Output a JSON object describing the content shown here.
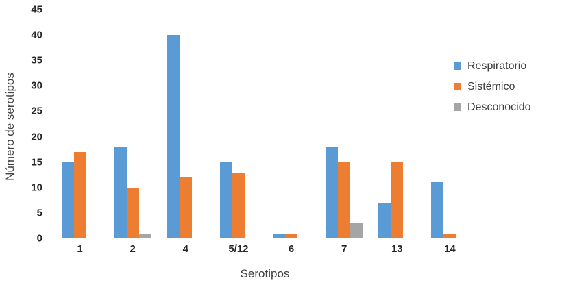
{
  "chart_data": {
    "type": "bar",
    "title": "",
    "xlabel": "Serotipos",
    "ylabel": "Número de serotipos",
    "categories": [
      "1",
      "2",
      "4",
      "5/12",
      "6",
      "7",
      "13",
      "14"
    ],
    "series": [
      {
        "name": "Respiratorio",
        "color": "#5B9BD5",
        "values": [
          15,
          18,
          40,
          15,
          1,
          18,
          7,
          11
        ]
      },
      {
        "name": "Sistémico",
        "color": "#ED7D31",
        "values": [
          17,
          10,
          12,
          13,
          1,
          15,
          15,
          1
        ]
      },
      {
        "name": "Desconocido",
        "color": "#A5A5A5",
        "values": [
          0,
          1,
          0,
          0,
          0,
          3,
          0,
          0
        ]
      }
    ],
    "ylim": [
      0,
      45
    ],
    "yticks": [
      0,
      5,
      10,
      15,
      20,
      25,
      30,
      35,
      40,
      45
    ],
    "grid": false,
    "legend_position": "right"
  },
  "colors": {
    "axis_line": "#d9d9d9",
    "tick_label": "#262626",
    "axis_title": "#404040",
    "legend_text": "#3d3d3d"
  }
}
